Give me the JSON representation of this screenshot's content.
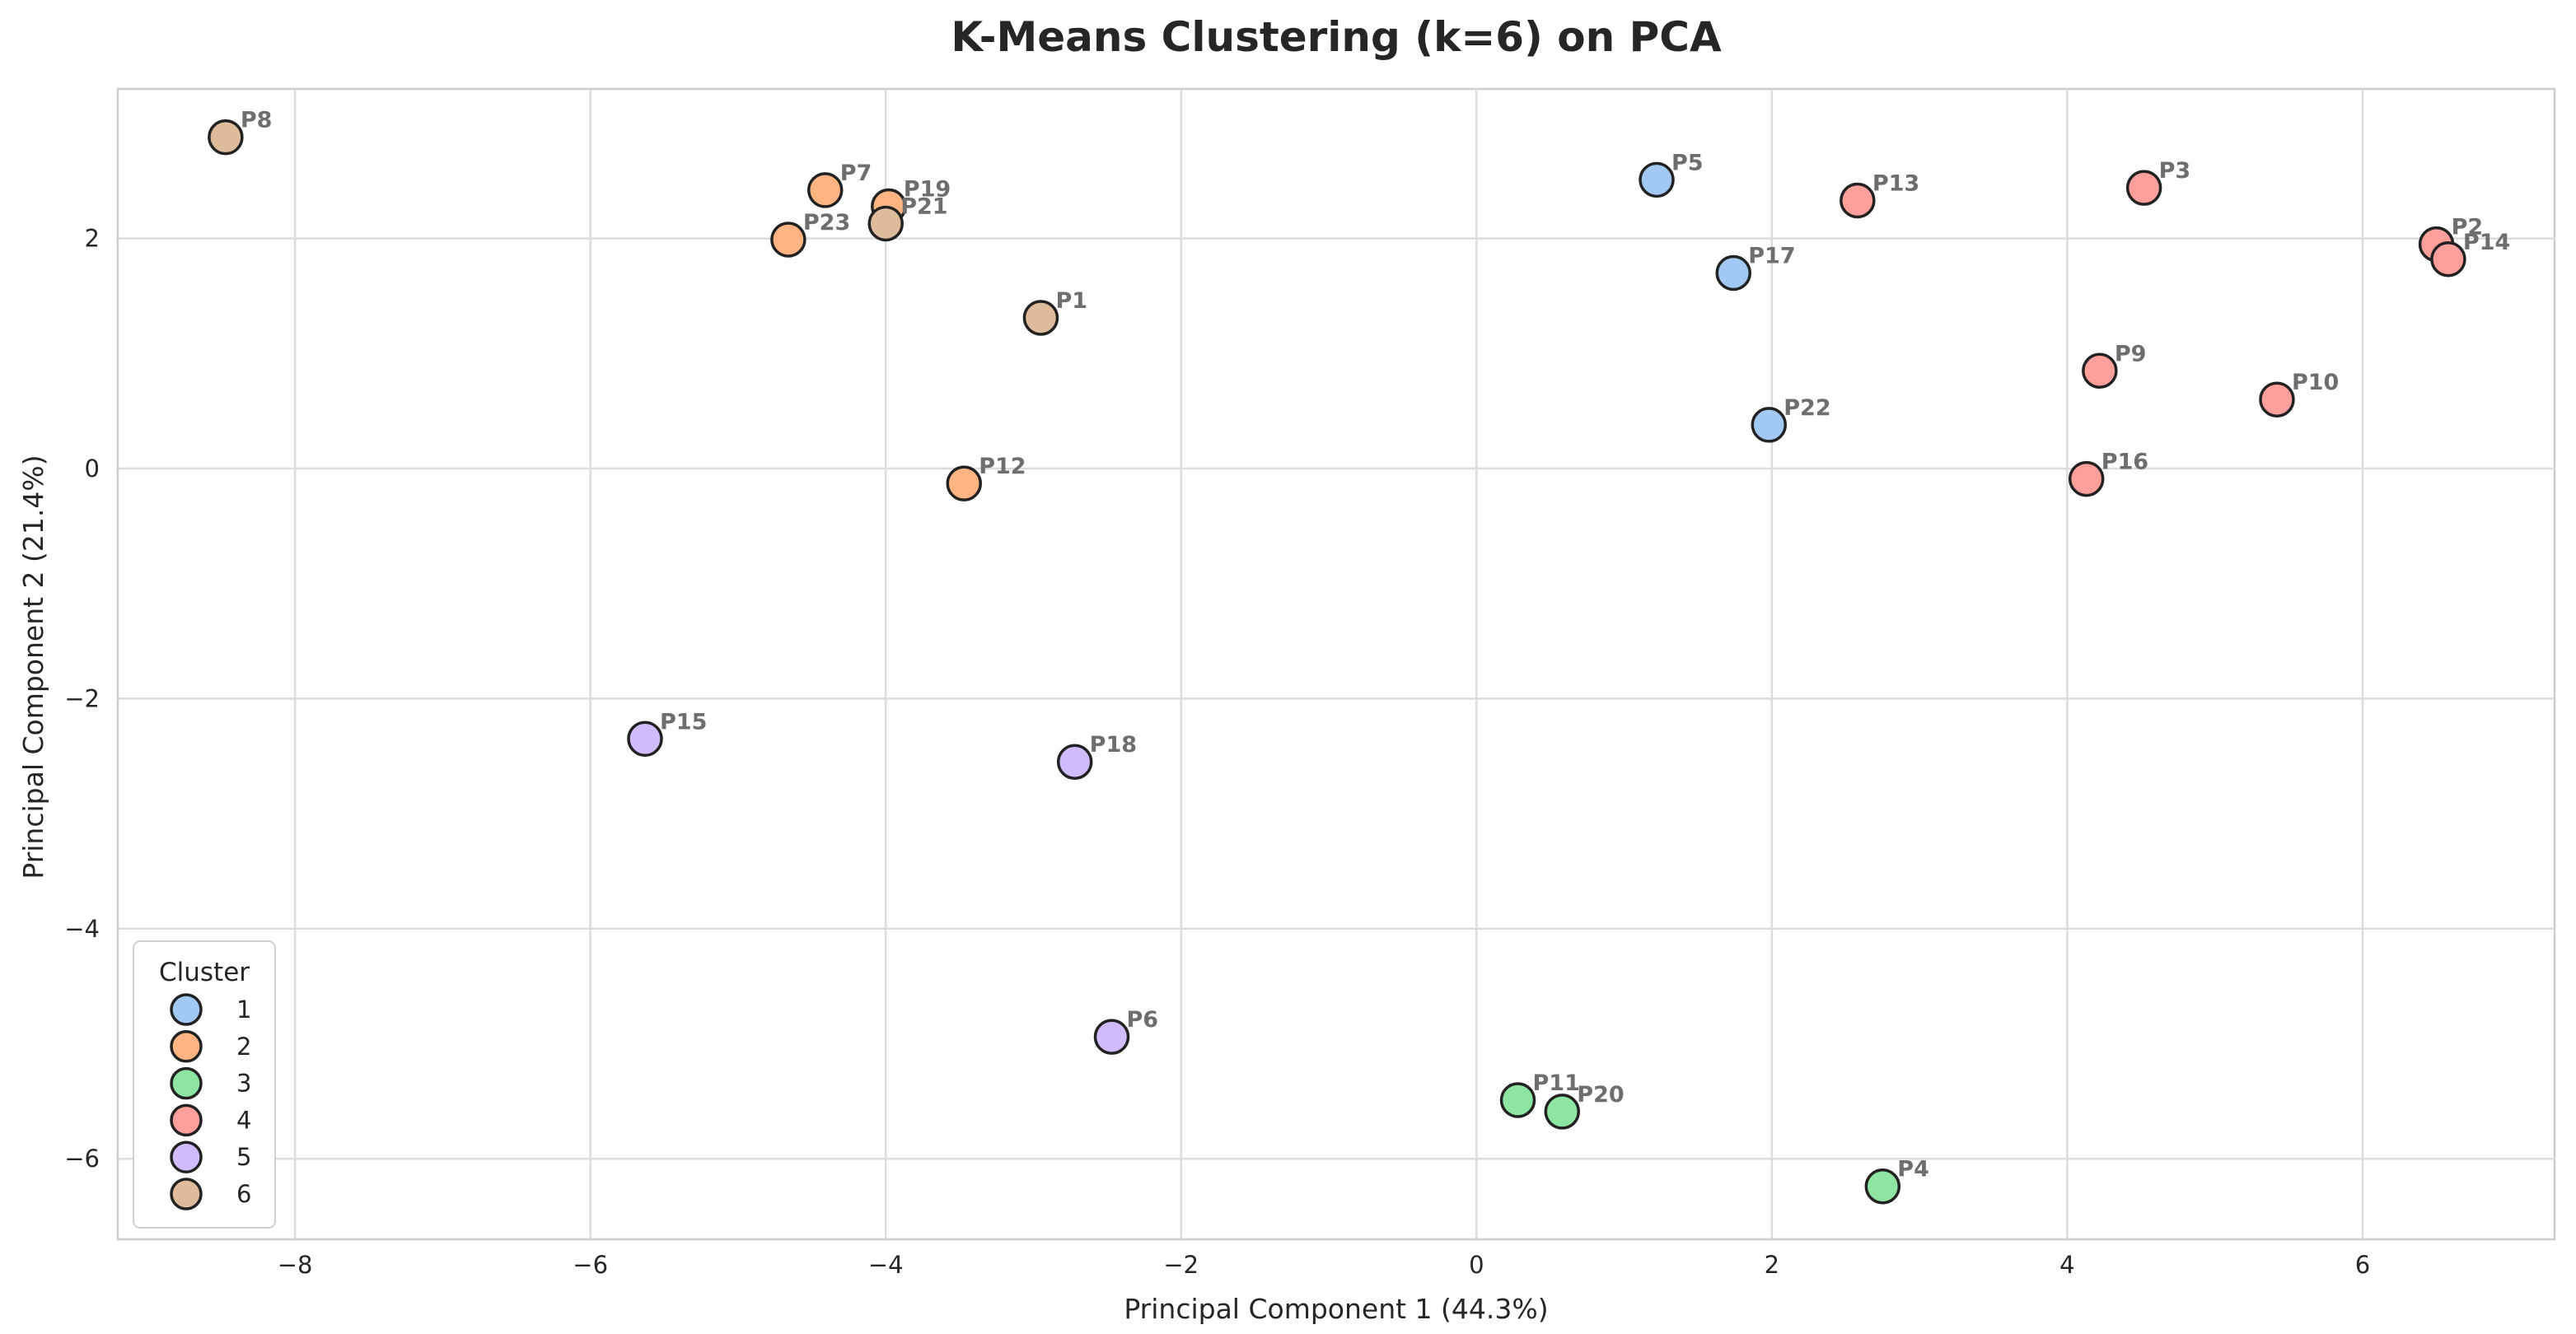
{
  "chart_data": {
    "type": "scatter",
    "title": "K-Means Clustering (k=6) on PCA",
    "xlabel": "Principal Component 1 (44.3%)",
    "ylabel": "Principal Component 2 (21.4%)",
    "xlim": [
      -9.2,
      7.3
    ],
    "ylim": [
      -6.7,
      3.3
    ],
    "xticks": [
      -8,
      -6,
      -4,
      -2,
      0,
      2,
      4,
      6
    ],
    "yticks": [
      -6,
      -4,
      -2,
      0,
      2
    ],
    "grid": true,
    "legend": {
      "title": "Cluster",
      "position": "lower-left",
      "entries": [
        {
          "label": "1",
          "cluster": 1
        },
        {
          "label": "2",
          "cluster": 2
        },
        {
          "label": "3",
          "cluster": 3
        },
        {
          "label": "4",
          "cluster": 4
        },
        {
          "label": "5",
          "cluster": 5
        },
        {
          "label": "6",
          "cluster": 6
        }
      ]
    },
    "cluster_colors": {
      "1": "#a1c9f4",
      "2": "#ffb482",
      "3": "#8de5a1",
      "4": "#ff9f9b",
      "5": "#d0bbff",
      "6": "#debb9b"
    },
    "points": [
      {
        "label": "P1",
        "x": -2.95,
        "y": 1.31,
        "cluster": 6
      },
      {
        "label": "P2",
        "x": 6.5,
        "y": 1.95,
        "cluster": 4
      },
      {
        "label": "P3",
        "x": 4.52,
        "y": 2.44,
        "cluster": 4
      },
      {
        "label": "P4",
        "x": 2.75,
        "y": -6.24,
        "cluster": 3
      },
      {
        "label": "P5",
        "x": 1.22,
        "y": 2.51,
        "cluster": 1
      },
      {
        "label": "P6",
        "x": -2.47,
        "y": -4.94,
        "cluster": 5
      },
      {
        "label": "P7",
        "x": -4.41,
        "y": 2.42,
        "cluster": 2
      },
      {
        "label": "P8",
        "x": -8.47,
        "y": 2.88,
        "cluster": 6
      },
      {
        "label": "P9",
        "x": 4.22,
        "y": 0.85,
        "cluster": 4
      },
      {
        "label": "P10",
        "x": 5.42,
        "y": 0.6,
        "cluster": 4
      },
      {
        "label": "P11",
        "x": 0.28,
        "y": -5.49,
        "cluster": 3
      },
      {
        "label": "P12",
        "x": -3.47,
        "y": -0.13,
        "cluster": 2
      },
      {
        "label": "P13",
        "x": 2.58,
        "y": 2.33,
        "cluster": 4
      },
      {
        "label": "P14",
        "x": 6.58,
        "y": 1.82,
        "cluster": 4
      },
      {
        "label": "P15",
        "x": -5.63,
        "y": -2.35,
        "cluster": 5
      },
      {
        "label": "P16",
        "x": 4.13,
        "y": -0.09,
        "cluster": 4
      },
      {
        "label": "P17",
        "x": 1.74,
        "y": 1.7,
        "cluster": 1
      },
      {
        "label": "P18",
        "x": -2.72,
        "y": -2.55,
        "cluster": 5
      },
      {
        "label": "P19",
        "x": -3.98,
        "y": 2.28,
        "cluster": 2
      },
      {
        "label": "P20",
        "x": 0.58,
        "y": -5.59,
        "cluster": 3
      },
      {
        "label": "P21",
        "x": -4.0,
        "y": 2.13,
        "cluster": 6
      },
      {
        "label": "P22",
        "x": 1.98,
        "y": 0.38,
        "cluster": 1
      },
      {
        "label": "P23",
        "x": -4.66,
        "y": 1.99,
        "cluster": 2
      }
    ]
  }
}
